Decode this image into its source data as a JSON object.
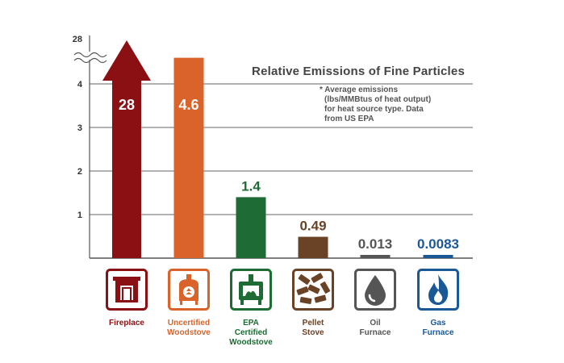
{
  "chart_data": {
    "type": "bar",
    "title": "Relative Emissions of Fine Particles",
    "note_lines": [
      "* Average emissions",
      "(lbs/MMBtus of heat output)",
      "for heat source type. Data",
      "from US EPA"
    ],
    "y_ticks": [
      "1",
      "2",
      "3",
      "4",
      "28"
    ],
    "y_axis_break": true,
    "ylim": [
      0,
      5
    ],
    "grid": true,
    "categories": [
      {
        "label_lines": [
          "Fireplace"
        ],
        "value": 28,
        "value_label": "28",
        "color": "#8B1014",
        "icon": "fireplace-icon",
        "shape": "arrow",
        "label_inside": true
      },
      {
        "label_lines": [
          "Uncertified",
          "Woodstove"
        ],
        "value": 4.6,
        "value_label": "4.6",
        "color": "#D9632A",
        "icon": "woodstove-icon",
        "shape": "bar",
        "label_inside": true
      },
      {
        "label_lines": [
          "EPA",
          "Certified",
          "Woodstove"
        ],
        "value": 1.4,
        "value_label": "1.4",
        "color": "#1E6B35",
        "icon": "certified-woodstove-icon",
        "shape": "bar",
        "label_inside": false
      },
      {
        "label_lines": [
          "Pellet",
          "Stove"
        ],
        "value": 0.49,
        "value_label": "0.49",
        "color": "#6A4226",
        "icon": "pellets-icon",
        "shape": "bar",
        "label_inside": false
      },
      {
        "label_lines": [
          "Oil",
          "Furnace"
        ],
        "value": 0.013,
        "value_label": "0.013",
        "color": "#555555",
        "icon": "oil-drop-icon",
        "shape": "bar",
        "label_inside": false
      },
      {
        "label_lines": [
          "Gas",
          "Furnace"
        ],
        "value": 0.0083,
        "value_label": "0.0083",
        "color": "#1B5896",
        "icon": "gas-flame-icon",
        "shape": "bar",
        "label_inside": false
      }
    ]
  }
}
